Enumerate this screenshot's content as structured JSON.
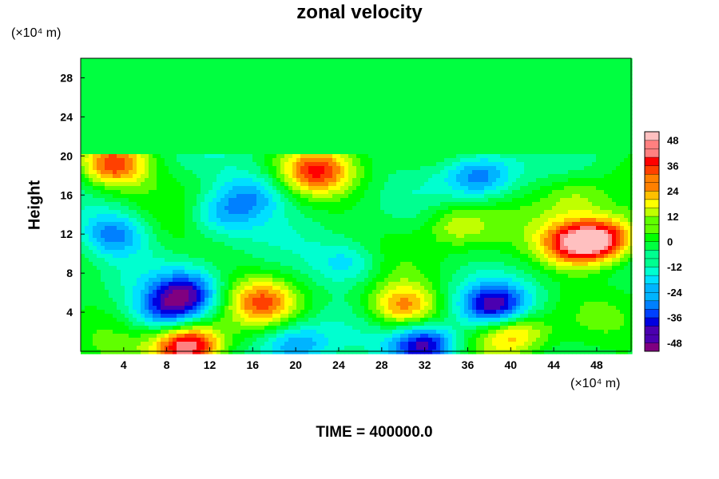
{
  "chart_data": {
    "type": "heatmap",
    "title": "zonal velocity",
    "ylabel": "Height",
    "y_multiplier_label": "(×10⁴ m)",
    "x_multiplier_label": "(×10⁴ m)",
    "footer": "TIME = 400000.0",
    "xlim": [
      0,
      51.2
    ],
    "ylim": [
      0,
      30
    ],
    "x_ticks": [
      "4",
      "8",
      "12",
      "16",
      "20",
      "24",
      "28",
      "32",
      "36",
      "40",
      "44",
      "48"
    ],
    "y_ticks": [
      "4",
      "8",
      "12",
      "16",
      "20",
      "24",
      "28"
    ],
    "colorbar": {
      "range": [
        -52,
        52
      ],
      "levels": 26,
      "tick_labels": [
        "48",
        "36",
        "24",
        "12",
        "0",
        "-12",
        "-24",
        "-36",
        "-48"
      ],
      "colors": [
        "#800080",
        "#4b00b0",
        "#0000e0",
        "#0040ff",
        "#0080ff",
        "#00b4ff",
        "#00e0ff",
        "#00ffd0",
        "#00ff90",
        "#00ff40",
        "#00ff00",
        "#60ff00",
        "#c0ff00",
        "#ffff00",
        "#ffc000",
        "#ff8000",
        "#ff4000",
        "#ff0000",
        "#ff8080",
        "#ffc0c0"
      ]
    },
    "background_value": -2,
    "features": [
      {
        "x": 3,
        "y": 19,
        "value": 36
      },
      {
        "x": 8,
        "y": 4,
        "value": -30
      },
      {
        "x": 10,
        "y": 6,
        "value": -36
      },
      {
        "x": 10,
        "y": 0.5,
        "value": 52
      },
      {
        "x": 16,
        "y": 16,
        "value": -22
      },
      {
        "x": 13,
        "y": 14,
        "value": -22
      },
      {
        "x": 22,
        "y": 18.5,
        "value": 30
      },
      {
        "x": 17,
        "y": 5,
        "value": 26
      },
      {
        "x": 25,
        "y": 9,
        "value": -20
      },
      {
        "x": 30,
        "y": 4.5,
        "value": 28
      },
      {
        "x": 32,
        "y": 0.5,
        "value": -48
      },
      {
        "x": 37,
        "y": 18,
        "value": -30
      },
      {
        "x": 38.5,
        "y": 4.5,
        "value": -44
      },
      {
        "x": 46,
        "y": 11,
        "value": 40
      },
      {
        "x": 49,
        "y": 11.5,
        "value": 38
      },
      {
        "x": 3,
        "y": 12,
        "value": -28
      },
      {
        "x": 40,
        "y": 2,
        "value": 28
      },
      {
        "x": 20,
        "y": 0.5,
        "value": -26
      },
      {
        "x": 35,
        "y": 13,
        "value": 16
      },
      {
        "x": 46,
        "y": 16,
        "value": 12
      }
    ]
  }
}
